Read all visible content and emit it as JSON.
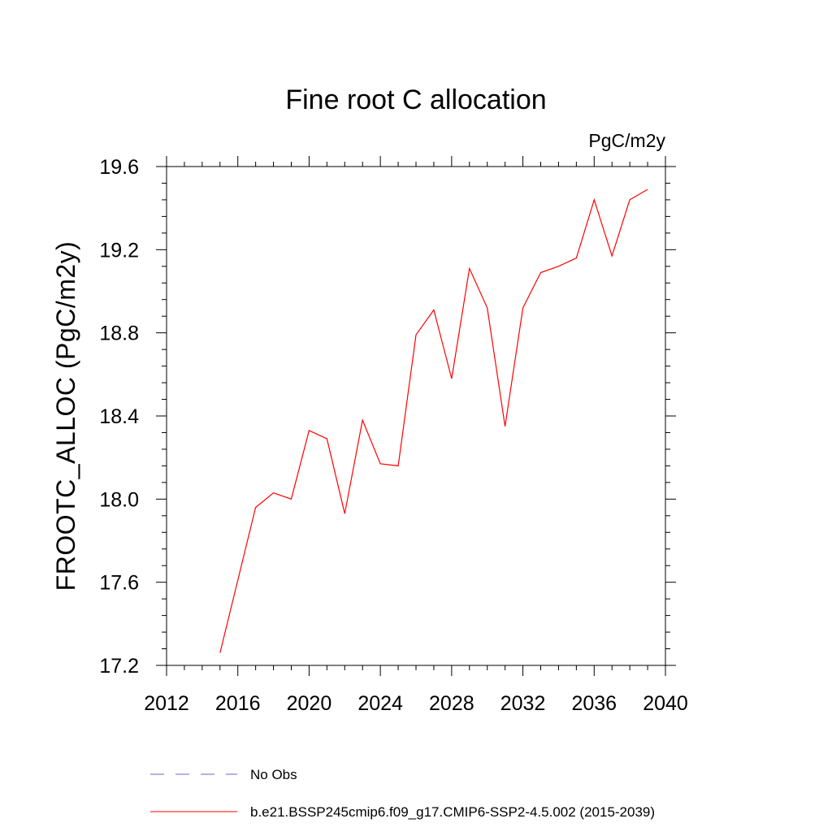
{
  "chart_data": {
    "type": "line",
    "title": "Fine root C allocation",
    "units_label": "PgC/m2y",
    "xlabel": "",
    "ylabel": "FROOTC_ALLOC  (PgC/m2y)",
    "xlim": [
      2012,
      2040
    ],
    "ylim": [
      17.2,
      19.6
    ],
    "x_ticks": [
      "2012",
      "2016",
      "2020",
      "2024",
      "2028",
      "2032",
      "2036",
      "2040"
    ],
    "y_ticks": [
      "17.2",
      "17.6",
      "18.0",
      "18.4",
      "18.8",
      "19.2",
      "19.6"
    ],
    "grid": false,
    "legend_position": "bottom",
    "series": [
      {
        "name": "b.e21.BSSP245cmip6.f09_g17.CMIP6-SSP2-4.5.002 (2015-2039)",
        "color": "#ff0000",
        "style": "solid",
        "x": [
          2015,
          2016,
          2017,
          2018,
          2019,
          2020,
          2021,
          2022,
          2023,
          2024,
          2025,
          2026,
          2027,
          2028,
          2029,
          2030,
          2031,
          2032,
          2033,
          2034,
          2035,
          2036,
          2037,
          2038,
          2039
        ],
        "y": [
          17.26,
          17.61,
          17.96,
          18.03,
          18.0,
          18.33,
          18.29,
          17.93,
          18.38,
          18.17,
          18.16,
          18.79,
          18.91,
          18.58,
          19.11,
          18.92,
          18.35,
          18.92,
          19.09,
          19.12,
          19.16,
          19.44,
          19.17,
          19.44,
          19.49
        ]
      }
    ],
    "legend": [
      {
        "label": "No Obs",
        "color": "#6666cc",
        "style": "dashed"
      },
      {
        "label": "b.e21.BSSP245cmip6.f09_g17.CMIP6-SSP2-4.5.002 (2015-2039)",
        "color": "#ff0000",
        "style": "solid"
      }
    ]
  }
}
